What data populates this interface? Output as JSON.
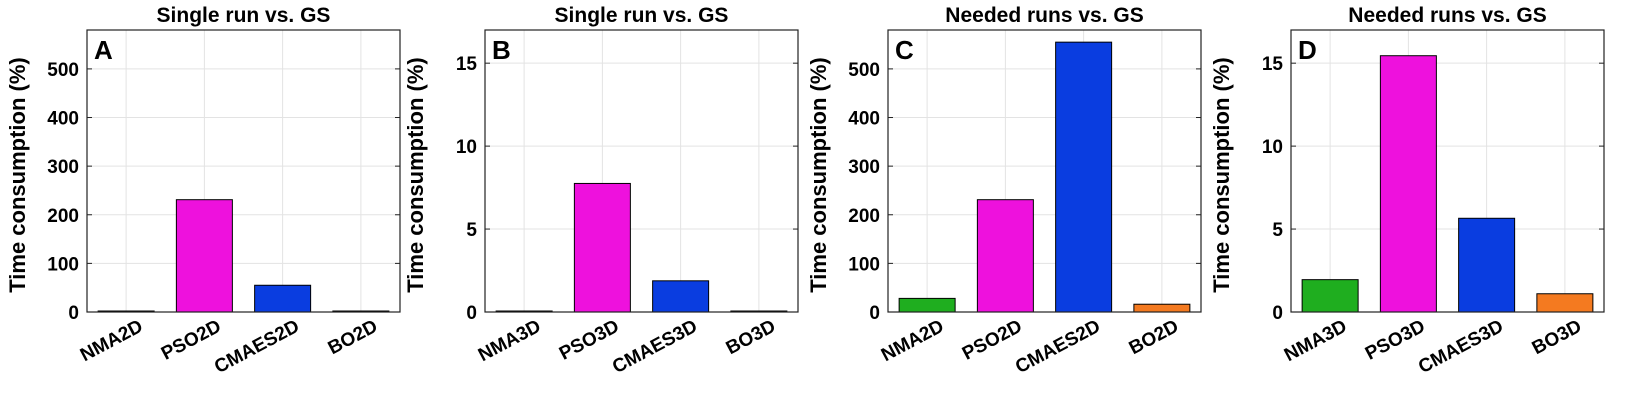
{
  "chart_data": [
    {
      "type": "bar",
      "panel": "A",
      "title": "Single run vs. GS",
      "ylabel": "Time consumption (%)",
      "xlabel": "",
      "categories": [
        "NMA2D",
        "PSO2D",
        "CMAES2D",
        "BO2D"
      ],
      "values": [
        0.5,
        231,
        55,
        0.2
      ],
      "colors": [
        "#1fae1f",
        "#ee11dd",
        "#0a3de0",
        "#f47a20"
      ],
      "ylim": [
        0,
        580
      ],
      "yticks": [
        0,
        100,
        200,
        300,
        400,
        500
      ],
      "grid": true
    },
    {
      "type": "bar",
      "panel": "B",
      "title": "Single run vs. GS",
      "ylabel": "Time consumption (%)",
      "xlabel": "",
      "categories": [
        "NMA3D",
        "PSO3D",
        "CMAES3D",
        "BO3D"
      ],
      "values": [
        0.06,
        7.75,
        1.88,
        0.05
      ],
      "colors": [
        "#1fae1f",
        "#ee11dd",
        "#0a3de0",
        "#f47a20"
      ],
      "ylim": [
        0,
        17
      ],
      "yticks": [
        0,
        5,
        10,
        15
      ],
      "grid": true
    },
    {
      "type": "bar",
      "panel": "C",
      "title": "Needed runs vs. GS",
      "ylabel": "Time consumption (%)",
      "xlabel": "",
      "categories": [
        "NMA2D",
        "PSO2D",
        "CMAES2D",
        "BO2D"
      ],
      "values": [
        28,
        231,
        555,
        16
      ],
      "colors": [
        "#1fae1f",
        "#ee11dd",
        "#0a3de0",
        "#f47a20"
      ],
      "ylim": [
        0,
        580
      ],
      "yticks": [
        0,
        100,
        200,
        300,
        400,
        500
      ],
      "grid": true
    },
    {
      "type": "bar",
      "panel": "D",
      "title": "Needed runs vs. GS",
      "ylabel": "Time consumption (%)",
      "xlabel": "",
      "categories": [
        "NMA3D",
        "PSO3D",
        "CMAES3D",
        "BO3D"
      ],
      "values": [
        1.95,
        15.45,
        5.65,
        1.1
      ],
      "colors": [
        "#1fae1f",
        "#ee11dd",
        "#0a3de0",
        "#f47a20"
      ],
      "ylim": [
        0,
        17
      ],
      "yticks": [
        0,
        5,
        10,
        15
      ],
      "grid": true
    }
  ]
}
